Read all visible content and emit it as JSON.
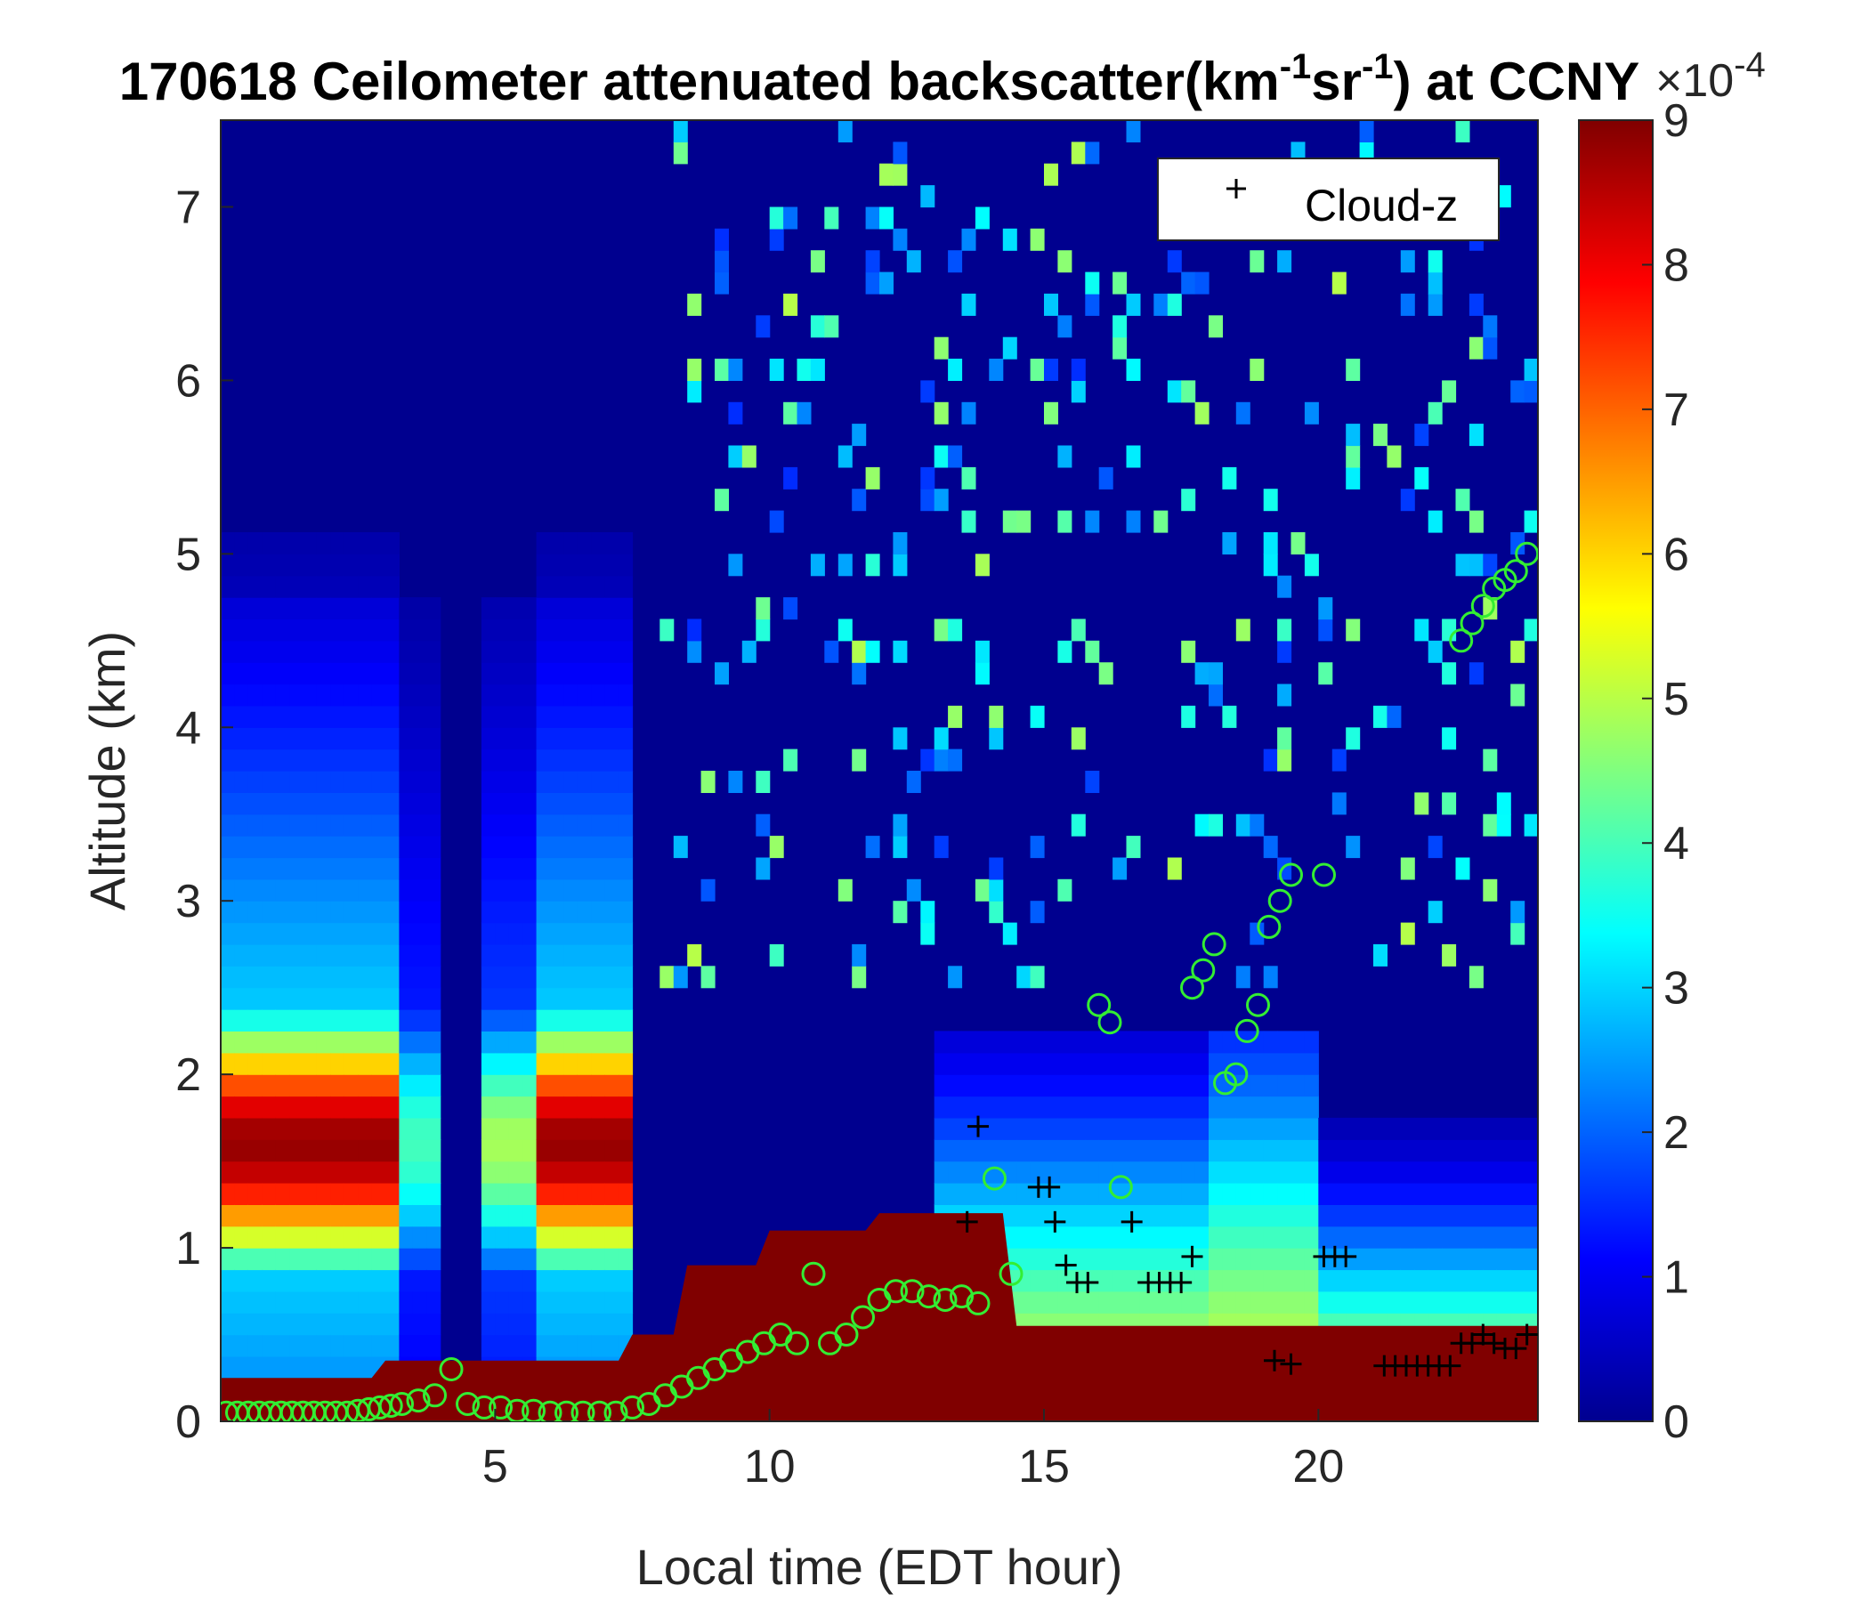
{
  "chart_data": {
    "type": "heatmap",
    "title": {
      "prefix": "170618 Ceilometer attenuated backscatter(km",
      "sup1": "-1",
      "mid": "sr",
      "sup2": "-1",
      "suffix": ") at CCNY"
    },
    "xlabel": "Local time (EDT hour)",
    "ylabel": "Altitude (km)",
    "xlim": [
      0,
      24
    ],
    "ylim": [
      0,
      7.5
    ],
    "xticks": [
      5,
      10,
      15,
      20
    ],
    "yticks": [
      0,
      1,
      2,
      3,
      4,
      5,
      6,
      7
    ],
    "colorbar": {
      "colormap": "jet",
      "range": [
        0,
        9
      ],
      "ticks": [
        0,
        1,
        2,
        3,
        4,
        5,
        6,
        7,
        8,
        9
      ],
      "exponent_label": "×10",
      "exponent_sup": "-4"
    },
    "legend": {
      "position": "top-right",
      "entries": [
        {
          "marker": "+",
          "label": "Cloud-z",
          "color": "#000000"
        }
      ]
    },
    "colors": {
      "pbl_marker": "#33ee33",
      "cloud_marker": "#000000",
      "low_layer": "#800000"
    },
    "pbl_height": {
      "name": "",
      "x": [
        0.1,
        0.3,
        0.5,
        0.7,
        0.9,
        1.1,
        1.3,
        1.5,
        1.7,
        1.9,
        2.1,
        2.3,
        2.5,
        2.7,
        2.9,
        3.1,
        3.3,
        3.6,
        3.9,
        4.2,
        4.5,
        4.8,
        5.1,
        5.4,
        5.7,
        6.0,
        6.3,
        6.6,
        6.9,
        7.2,
        7.5,
        7.8,
        8.1,
        8.4,
        8.7,
        9.0,
        9.3,
        9.6,
        9.9,
        10.2,
        10.5,
        10.8,
        11.1,
        11.4,
        11.7,
        12.0,
        12.3,
        12.6,
        12.9,
        13.2,
        13.5,
        13.8,
        14.1,
        14.4,
        16.0,
        16.2,
        16.4,
        17.7,
        17.9,
        18.1,
        18.3,
        18.5,
        18.7,
        18.9,
        19.1,
        19.3,
        19.5,
        20.1,
        22.6,
        22.8,
        23.0,
        23.2,
        23.4,
        23.6,
        23.8
      ],
      "y": [
        0.05,
        0.05,
        0.05,
        0.05,
        0.05,
        0.05,
        0.05,
        0.05,
        0.05,
        0.05,
        0.05,
        0.05,
        0.06,
        0.07,
        0.08,
        0.09,
        0.1,
        0.12,
        0.15,
        0.3,
        0.1,
        0.08,
        0.08,
        0.06,
        0.06,
        0.05,
        0.05,
        0.05,
        0.05,
        0.05,
        0.08,
        0.1,
        0.15,
        0.2,
        0.25,
        0.3,
        0.35,
        0.4,
        0.45,
        0.5,
        0.45,
        0.85,
        0.45,
        0.5,
        0.6,
        0.7,
        0.75,
        0.75,
        0.72,
        0.7,
        0.72,
        0.68,
        1.4,
        0.85,
        2.4,
        2.3,
        1.35,
        2.5,
        2.6,
        2.75,
        1.95,
        2.0,
        2.25,
        2.4,
        2.85,
        3.0,
        3.15,
        3.15,
        4.5,
        4.6,
        4.7,
        4.8,
        4.85,
        4.9,
        5.0
      ]
    },
    "cloud_base": {
      "name": "Cloud-z",
      "x": [
        13.6,
        13.8,
        14.9,
        15.1,
        15.2,
        15.4,
        15.6,
        15.8,
        16.6,
        16.9,
        17.1,
        17.3,
        17.5,
        17.7,
        19.2,
        19.5,
        20.1,
        20.3,
        20.5,
        21.2,
        21.4,
        21.6,
        21.8,
        22.0,
        22.2,
        22.4,
        22.6,
        22.8,
        23.0,
        23.2,
        23.4,
        23.6,
        23.8
      ],
      "y": [
        1.15,
        1.7,
        1.35,
        1.35,
        1.15,
        0.9,
        0.8,
        0.8,
        1.15,
        0.8,
        0.8,
        0.8,
        0.8,
        0.95,
        0.35,
        0.33,
        0.95,
        0.95,
        0.95,
        0.32,
        0.32,
        0.32,
        0.32,
        0.32,
        0.32,
        0.32,
        0.45,
        0.45,
        0.5,
        0.45,
        0.42,
        0.42,
        0.5
      ]
    }
  }
}
